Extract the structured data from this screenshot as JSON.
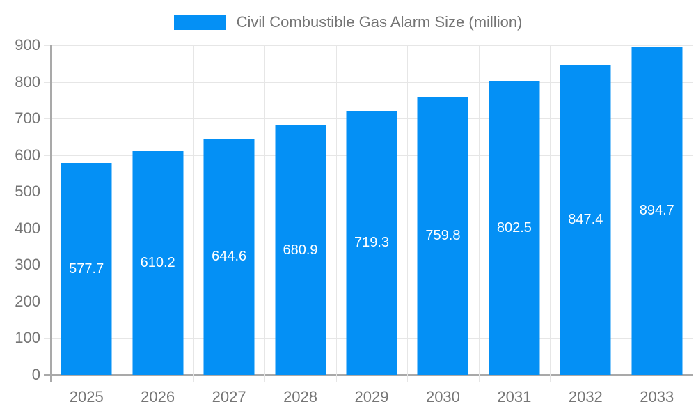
{
  "colors": {
    "bar": "#0490F5",
    "grid": "#e6e6e6",
    "axis": "#a9a9a9",
    "text": "#757575",
    "value_label": "#ffffff"
  },
  "chart_data": {
    "type": "bar",
    "title": "Civil Combustible Gas Alarm Size (million)",
    "categories": [
      "2025",
      "2026",
      "2027",
      "2028",
      "2029",
      "2030",
      "2031",
      "2032",
      "2033"
    ],
    "values": [
      577.7,
      610.2,
      644.6,
      680.9,
      719.3,
      759.8,
      802.5,
      847.4,
      894.7
    ],
    "xlabel": "",
    "ylabel": "",
    "ylim": [
      0,
      900
    ],
    "ytick_step": 100,
    "yticks": [
      "0",
      "100",
      "200",
      "300",
      "400",
      "500",
      "600",
      "700",
      "800",
      "900"
    ],
    "grid": true,
    "legend_position": "top",
    "value_labels": "white, centered inside bars"
  }
}
